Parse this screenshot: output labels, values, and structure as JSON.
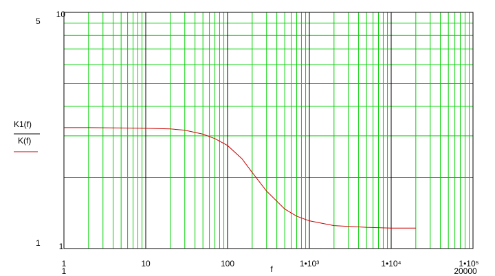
{
  "chart_data": {
    "type": "line",
    "xlog": true,
    "ylog": true,
    "x": [
      1,
      2,
      5,
      10,
      20,
      30,
      50,
      70,
      100,
      150,
      200,
      300,
      500,
      700,
      1000,
      2000,
      5000,
      10000,
      20000
    ],
    "series": [
      {
        "name": "K1(f)",
        "color": "#cc0000",
        "values": [
          3.25,
          3.25,
          3.24,
          3.23,
          3.21,
          3.17,
          3.05,
          2.92,
          2.73,
          2.4,
          2.1,
          1.75,
          1.47,
          1.37,
          1.31,
          1.25,
          1.23,
          1.22,
          1.22
        ]
      }
    ],
    "ylabel_numerator": "K1(f)",
    "ylabel_denominator": "K(f)",
    "xlabel": "f",
    "xlim": [
      1,
      100000
    ],
    "ylim": [
      1,
      10
    ],
    "xticks": [
      1,
      10,
      100,
      {
        "value": 1000,
        "label": "1•10³"
      },
      {
        "value": 10000,
        "label": "1•10⁴"
      },
      {
        "value": 100000,
        "label": "1•10⁵"
      }
    ],
    "yticks": [
      1,
      10
    ],
    "xticks_minor": [
      2,
      3,
      4,
      5,
      6,
      7,
      8,
      9,
      20,
      30,
      40,
      50,
      60,
      70,
      80,
      90,
      200,
      300,
      400,
      500,
      600,
      700,
      800,
      900,
      2000,
      3000,
      4000,
      5000,
      6000,
      7000,
      8000,
      9000,
      20000,
      30000,
      40000,
      50000,
      60000,
      70000,
      80000,
      90000
    ],
    "yticks_minor": [
      2,
      3,
      4,
      5,
      6,
      7,
      8,
      9
    ],
    "x_range_labels": [
      "1",
      "20000"
    ],
    "y_range_labels": [
      "5",
      "1"
    ],
    "grid": true,
    "grid_color": "#00d000"
  }
}
